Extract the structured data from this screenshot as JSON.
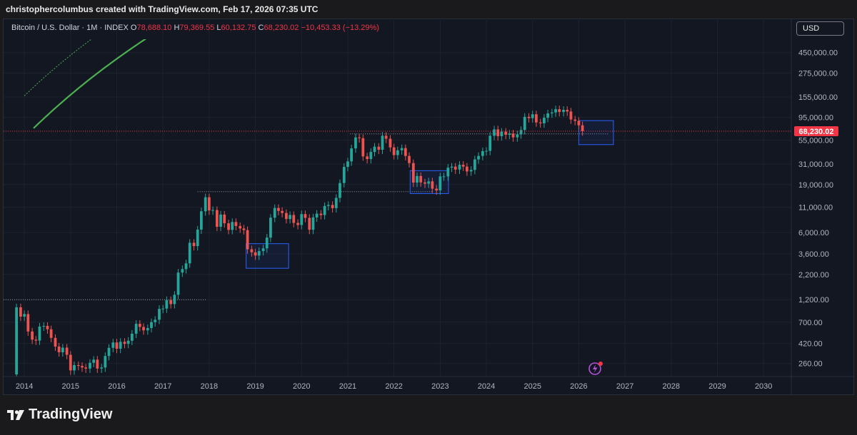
{
  "header": {
    "created_by": "christophercolumbus created with TradingView.com, Feb 17, 2026 07:35 UTC"
  },
  "legend": {
    "symbol": "Bitcoin / U.S. Dollar · 1M · INDEX",
    "open_label": "O",
    "open": "78,688.10",
    "high_label": "H",
    "high": "79,369.55",
    "low_label": "L",
    "low": "60,132.75",
    "close_label": "C",
    "close": "68,230.02",
    "change": "−10,453.33 (−13.29%)"
  },
  "currency_button": "USD",
  "price_badge": "68,230.02",
  "footer": {
    "brand": "TradingView"
  },
  "colors": {
    "up": "#26a69a",
    "down": "#ef5350",
    "power_law": "#4caf50",
    "band": "#3c3f47",
    "highlight_box": "#2962ff",
    "price_line": "#f23645"
  },
  "icons": {
    "logo": "tradingview-logo-icon",
    "lightning": "lightning-icon"
  },
  "chart_data": {
    "type": "candlestick",
    "scale": "log",
    "x_tick_labels": [
      "2014",
      "2015",
      "2016",
      "2017",
      "2018",
      "2019",
      "2020",
      "2021",
      "2022",
      "2023",
      "2024",
      "2025",
      "2026",
      "2027",
      "2028",
      "2029",
      "2030"
    ],
    "y_tick_labels": [
      "450,000.00",
      "275,000.00",
      "155,000.00",
      "95,000.00",
      "55,000.00",
      "31,000.00",
      "19,000.00",
      "11,000.00",
      "6,000.00",
      "3,600.00",
      "2,200.00",
      "1,200.00",
      "700.00",
      "420.00",
      "260.00"
    ],
    "y_tick_values": [
      450000,
      275000,
      155000,
      95000,
      55000,
      31000,
      19000,
      11000,
      6000,
      3600,
      2200,
      1200,
      700,
      420,
      260
    ],
    "ylim": [
      190,
      620000
    ],
    "xlim": [
      2013.55,
      2030.6
    ],
    "last_price": 68230.02,
    "monthly_close": [
      [
        2013.75,
        200
      ],
      [
        2013.83,
        1000
      ],
      [
        2013.92,
        800
      ],
      [
        2014.0,
        850
      ],
      [
        2014.08,
        560
      ],
      [
        2014.17,
        460
      ],
      [
        2014.25,
        450
      ],
      [
        2014.33,
        630
      ],
      [
        2014.42,
        640
      ],
      [
        2014.5,
        590
      ],
      [
        2014.58,
        480
      ],
      [
        2014.67,
        390
      ],
      [
        2014.75,
        340
      ],
      [
        2014.83,
        380
      ],
      [
        2014.92,
        320
      ],
      [
        2015.0,
        220
      ],
      [
        2015.08,
        250
      ],
      [
        2015.17,
        245
      ],
      [
        2015.25,
        236
      ],
      [
        2015.33,
        230
      ],
      [
        2015.42,
        264
      ],
      [
        2015.5,
        285
      ],
      [
        2015.58,
        230
      ],
      [
        2015.67,
        236
      ],
      [
        2015.75,
        311
      ],
      [
        2015.83,
        378
      ],
      [
        2015.92,
        430
      ],
      [
        2016.0,
        370
      ],
      [
        2016.08,
        437
      ],
      [
        2016.17,
        416
      ],
      [
        2016.25,
        448
      ],
      [
        2016.33,
        531
      ],
      [
        2016.42,
        673
      ],
      [
        2016.5,
        624
      ],
      [
        2016.58,
        575
      ],
      [
        2016.67,
        608
      ],
      [
        2016.75,
        700
      ],
      [
        2016.83,
        742
      ],
      [
        2016.92,
        963
      ],
      [
        2017.0,
        970
      ],
      [
        2017.08,
        1190
      ],
      [
        2017.17,
        1080
      ],
      [
        2017.25,
        1350
      ],
      [
        2017.33,
        2300
      ],
      [
        2017.42,
        2500
      ],
      [
        2017.5,
        2870
      ],
      [
        2017.58,
        4700
      ],
      [
        2017.67,
        4340
      ],
      [
        2017.75,
        6450
      ],
      [
        2017.83,
        10000
      ],
      [
        2017.92,
        14000
      ],
      [
        2018.0,
        10200
      ],
      [
        2018.08,
        10300
      ],
      [
        2018.17,
        6900
      ],
      [
        2018.25,
        9250
      ],
      [
        2018.33,
        7500
      ],
      [
        2018.42,
        6400
      ],
      [
        2018.5,
        7730
      ],
      [
        2018.58,
        7030
      ],
      [
        2018.67,
        6620
      ],
      [
        2018.75,
        6370
      ],
      [
        2018.83,
        4020
      ],
      [
        2018.92,
        3740
      ],
      [
        2019.0,
        3460
      ],
      [
        2019.08,
        3850
      ],
      [
        2019.17,
        4110
      ],
      [
        2019.25,
        5320
      ],
      [
        2019.33,
        8570
      ],
      [
        2019.42,
        10820
      ],
      [
        2019.5,
        10090
      ],
      [
        2019.58,
        9600
      ],
      [
        2019.67,
        8300
      ],
      [
        2019.75,
        9150
      ],
      [
        2019.83,
        7570
      ],
      [
        2019.92,
        7200
      ],
      [
        2020.0,
        9350
      ],
      [
        2020.08,
        8540
      ],
      [
        2020.17,
        6420
      ],
      [
        2020.25,
        8630
      ],
      [
        2020.33,
        9450
      ],
      [
        2020.42,
        9140
      ],
      [
        2020.5,
        11350
      ],
      [
        2020.58,
        11650
      ],
      [
        2020.67,
        10780
      ],
      [
        2020.75,
        13800
      ],
      [
        2020.83,
        19700
      ],
      [
        2020.92,
        29000
      ],
      [
        2021.0,
        33100
      ],
      [
        2021.08,
        45200
      ],
      [
        2021.17,
        58800
      ],
      [
        2021.25,
        57700
      ],
      [
        2021.33,
        37300
      ],
      [
        2021.42,
        35000
      ],
      [
        2021.5,
        41500
      ],
      [
        2021.58,
        47100
      ],
      [
        2021.67,
        43800
      ],
      [
        2021.75,
        61300
      ],
      [
        2021.83,
        57000
      ],
      [
        2021.92,
        46300
      ],
      [
        2022.0,
        38500
      ],
      [
        2022.08,
        43200
      ],
      [
        2022.17,
        45500
      ],
      [
        2022.25,
        37700
      ],
      [
        2022.33,
        31800
      ],
      [
        2022.42,
        19900
      ],
      [
        2022.5,
        23300
      ],
      [
        2022.58,
        20000
      ],
      [
        2022.67,
        19400
      ],
      [
        2022.75,
        20500
      ],
      [
        2022.83,
        17200
      ],
      [
        2022.92,
        16500
      ],
      [
        2023.0,
        23100
      ],
      [
        2023.08,
        23100
      ],
      [
        2023.17,
        28500
      ],
      [
        2023.25,
        29200
      ],
      [
        2023.33,
        27200
      ],
      [
        2023.42,
        30500
      ],
      [
        2023.5,
        29200
      ],
      [
        2023.58,
        26000
      ],
      [
        2023.67,
        27000
      ],
      [
        2023.75,
        34700
      ],
      [
        2023.83,
        37700
      ],
      [
        2023.92,
        42300
      ],
      [
        2024.0,
        42600
      ],
      [
        2024.08,
        61200
      ],
      [
        2024.17,
        71300
      ],
      [
        2024.25,
        60600
      ],
      [
        2024.33,
        67500
      ],
      [
        2024.42,
        62700
      ],
      [
        2024.5,
        64600
      ],
      [
        2024.58,
        58900
      ],
      [
        2024.67,
        63300
      ],
      [
        2024.75,
        70300
      ],
      [
        2024.83,
        96400
      ],
      [
        2024.92,
        93400
      ],
      [
        2025.0,
        102400
      ],
      [
        2025.08,
        84300
      ],
      [
        2025.17,
        82500
      ],
      [
        2025.25,
        94200
      ],
      [
        2025.33,
        104600
      ],
      [
        2025.42,
        107100
      ],
      [
        2025.5,
        115700
      ],
      [
        2025.58,
        108200
      ],
      [
        2025.67,
        114000
      ],
      [
        2025.75,
        109500
      ],
      [
        2025.83,
        90400
      ],
      [
        2025.92,
        87500
      ],
      [
        2026.0,
        78688
      ],
      [
        2026.08,
        68230
      ]
    ]
  }
}
